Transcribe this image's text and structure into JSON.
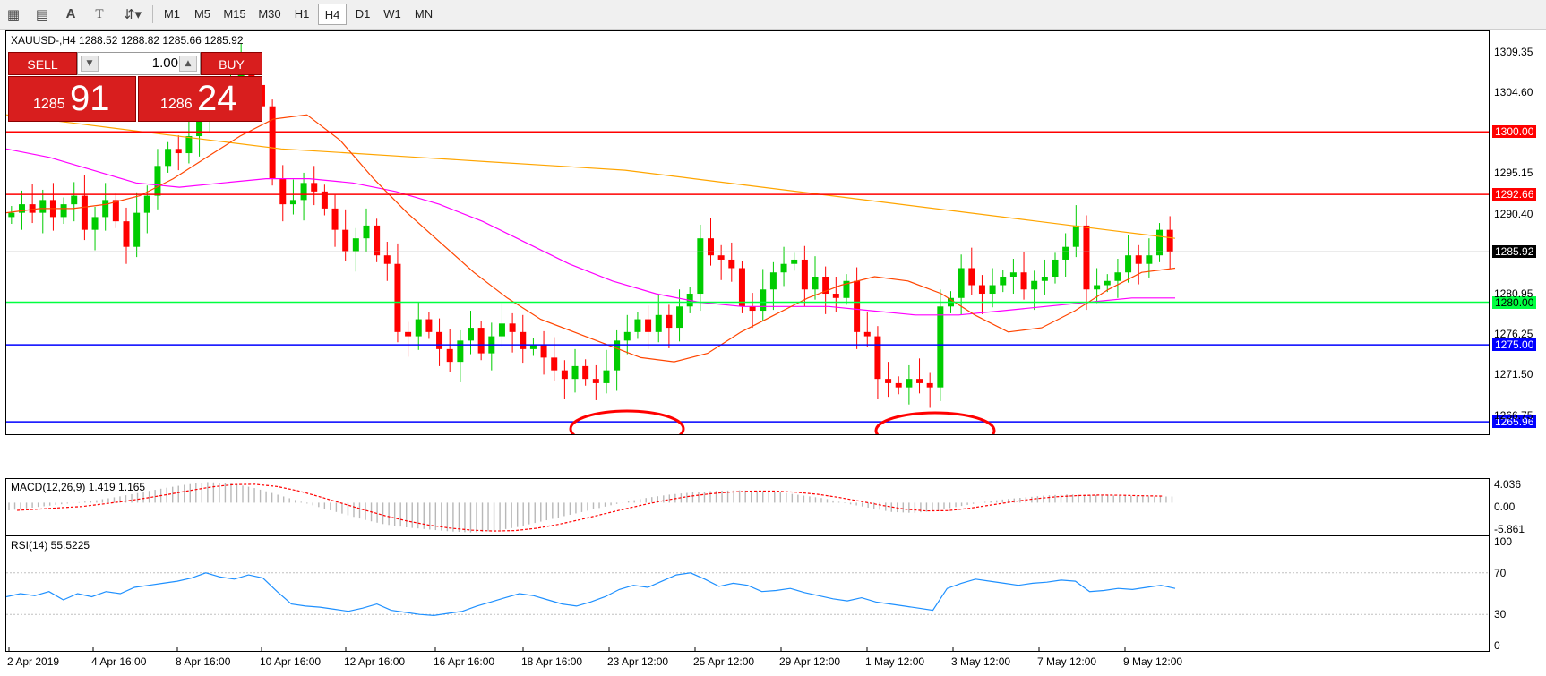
{
  "toolbar": {
    "timeframes": [
      "M1",
      "M5",
      "M15",
      "M30",
      "H1",
      "H4",
      "D1",
      "W1",
      "MN"
    ],
    "active_timeframe": "H4",
    "icons": [
      "tools-icon",
      "grid-icon",
      "text-icon",
      "text-label-icon",
      "arrows-icon"
    ]
  },
  "chart": {
    "title": "XAUUSD-,H4  1288.52 1288.82 1285.66 1285.92"
  },
  "one_click": {
    "sell_label": "SELL",
    "buy_label": "BUY",
    "lot": "1.00",
    "sell_price_small": "1285",
    "sell_price_big": "91",
    "buy_price_small": "1286",
    "buy_price_big": "24"
  },
  "price_axis": [
    "1309.35",
    "1304.60",
    "1295.15",
    "1290.40",
    "1280.95",
    "1276.25",
    "1271.50",
    "1266.75"
  ],
  "levels": [
    {
      "label": "1300.00",
      "color": "#ff0000",
      "value": 1300.0
    },
    {
      "label": "1292.66",
      "color": "#ff0000",
      "value": 1292.66
    },
    {
      "label": "1285.92",
      "color": "#000000",
      "value": 1285.92
    },
    {
      "label": "1280.00",
      "color": "#00ff40",
      "value": 1280.0
    },
    {
      "label": "1275.00",
      "color": "#0000ff",
      "value": 1275.0
    },
    {
      "label": "1265.96",
      "color": "#0000ff",
      "value": 1265.96
    }
  ],
  "macd": {
    "label": "MACD(12,26,9) 1.419 1.165",
    "axis": [
      "4.036",
      "0.00",
      "-5.861"
    ]
  },
  "rsi": {
    "label": "RSI(14) 55.5225",
    "axis": [
      "100",
      "70",
      "30",
      "0"
    ]
  },
  "time_axis": [
    "2 Apr 2019",
    "4 Apr 16:00",
    "8 Apr 16:00",
    "10 Apr 16:00",
    "12 Apr 16:00",
    "16 Apr 16:00",
    "18 Apr 16:00",
    "23 Apr 12:00",
    "25 Apr 12:00",
    "29 Apr 12:00",
    "1 May 12:00",
    "3 May 12:00",
    "7 May 12:00",
    "9 May 12:00"
  ],
  "chart_data": {
    "type": "candlestick",
    "y_range": [
      1264.5,
      1311.8
    ],
    "ma_colors": {
      "fast": "#ff4500",
      "mid": "#ff00ff",
      "slow": "#ffa500"
    },
    "candle_colors": {
      "up": "#00cc00",
      "down": "#ff0000"
    },
    "closes": [
      1290.5,
      1291.5,
      1290.5,
      1292.0,
      1290.0,
      1291.5,
      1292.5,
      1288.5,
      1290.0,
      1292.0,
      1289.5,
      1286.5,
      1290.5,
      1292.5,
      1296.0,
      1298.0,
      1297.5,
      1299.5,
      1301.5,
      1303.5,
      1304.5,
      1306.0,
      1308.0,
      1305.5,
      1303.0,
      1294.5,
      1291.5,
      1292.0,
      1294.0,
      1293.0,
      1291.0,
      1288.5,
      1286.0,
      1287.5,
      1289.0,
      1285.5,
      1284.5,
      1276.5,
      1276.0,
      1278.0,
      1276.5,
      1274.5,
      1273.0,
      1275.5,
      1277.0,
      1274.0,
      1276.0,
      1277.5,
      1276.5,
      1274.5,
      1275.0,
      1273.5,
      1272.0,
      1271.0,
      1272.5,
      1271.0,
      1270.5,
      1272.0,
      1275.5,
      1276.5,
      1278.0,
      1276.5,
      1278.5,
      1277.0,
      1279.5,
      1281.0,
      1287.5,
      1285.5,
      1285.0,
      1284.0,
      1279.5,
      1279.0,
      1281.5,
      1283.5,
      1284.5,
      1285.0,
      1281.5,
      1283.0,
      1281.0,
      1280.5,
      1282.5,
      1276.5,
      1276.0,
      1271.0,
      1270.5,
      1270.0,
      1271.0,
      1270.5,
      1270.0,
      1279.5,
      1280.5,
      1284.0,
      1282.0,
      1281.0,
      1282.0,
      1283.0,
      1283.5,
      1281.5,
      1282.5,
      1283.0,
      1285.0,
      1286.5,
      1289.0,
      1281.5,
      1282.0,
      1282.5,
      1283.5,
      1285.5,
      1284.5,
      1285.5,
      1288.5,
      1285.9
    ],
    "ma_fast": [
      1290.5,
      1291.0,
      1291.0,
      1291.5,
      1292.5,
      1294.5,
      1297.0,
      1299.5,
      1301.5,
      1302.0,
      1299.0,
      1294.5,
      1290.5,
      1287.0,
      1283.5,
      1280.5,
      1278.0,
      1276.5,
      1275.0,
      1273.5,
      1273.0,
      1274.0,
      1276.5,
      1278.5,
      1280.5,
      1282.0,
      1283.0,
      1282.5,
      1281.0,
      1278.5,
      1276.5,
      1277.0,
      1279.0,
      1281.5,
      1283.5,
      1284.0
    ],
    "ma_mid": [
      1298.0,
      1297.0,
      1295.5,
      1294.0,
      1293.5,
      1294.0,
      1294.5,
      1294.5,
      1294.0,
      1293.0,
      1291.5,
      1289.5,
      1287.0,
      1284.5,
      1282.5,
      1281.0,
      1280.0,
      1279.5,
      1279.5,
      1279.5,
      1279.0,
      1278.5,
      1278.5,
      1279.0,
      1279.5,
      1280.0,
      1280.5,
      1280.5
    ],
    "ma_slow": [
      1302.0,
      1301.0,
      1300.0,
      1299.0,
      1298.0,
      1297.5,
      1297.0,
      1296.5,
      1296.0,
      1295.5,
      1294.5,
      1293.5,
      1292.5,
      1291.5,
      1290.5,
      1289.5,
      1288.5,
      1287.5
    ],
    "macd_values": [
      -1.5,
      -1.0,
      -0.5,
      0.0,
      0.5,
      1.2,
      2.0,
      2.8,
      3.5,
      4.0,
      3.8,
      3.0,
      1.8,
      0.5,
      -0.8,
      -2.0,
      -3.2,
      -4.2,
      -4.8,
      -5.2,
      -5.6,
      -5.8,
      -5.5,
      -4.8,
      -3.8,
      -2.8,
      -1.8,
      -0.8,
      0.2,
      1.0,
      1.6,
      2.0,
      2.3,
      2.4,
      2.3,
      2.0,
      1.4,
      0.8,
      -0.2,
      -1.0,
      -1.8,
      -2.0,
      -1.6,
      -0.8,
      0.0,
      0.6,
      1.0,
      1.4,
      1.6,
      1.5,
      1.4,
      1.3,
      1.2,
      1.2
    ],
    "rsi_values": [
      47,
      50,
      48,
      52,
      44,
      50,
      47,
      52,
      50,
      56,
      58,
      60,
      62,
      65,
      70,
      66,
      64,
      68,
      65,
      52,
      40,
      38,
      37,
      35,
      33,
      36,
      40,
      34,
      32,
      30,
      29,
      31,
      33,
      38,
      42,
      46,
      50,
      48,
      44,
      40,
      38,
      42,
      47,
      54,
      58,
      56,
      62,
      68,
      70,
      64,
      57,
      60,
      58,
      52,
      53,
      55,
      51,
      48,
      45,
      43,
      46,
      42,
      40,
      38,
      36,
      34,
      55,
      60,
      64,
      62,
      60,
      58,
      60,
      61,
      63,
      62,
      52,
      53,
      55,
      54,
      56,
      58,
      55
    ]
  }
}
